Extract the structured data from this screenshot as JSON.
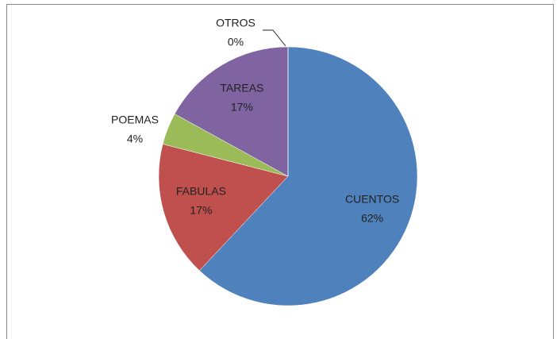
{
  "chart_data": {
    "type": "pie",
    "categories": [
      "CUENTOS",
      "FABULAS",
      "POEMAS",
      "TAREAS",
      "OTROS"
    ],
    "values": [
      62,
      17,
      4,
      17,
      0
    ],
    "value_labels": [
      "62%",
      "17%",
      "4%",
      "17%",
      "0%"
    ],
    "colors": [
      "#4f81bd",
      "#c0504d",
      "#9bbb59",
      "#8064a2",
      "#4bacc6"
    ]
  }
}
